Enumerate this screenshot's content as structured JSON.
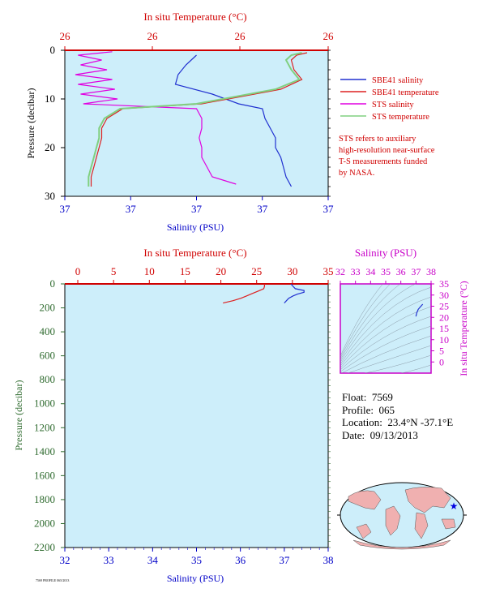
{
  "colors": {
    "plot_bg": "#cdeefa",
    "temperature": "#dd2020",
    "salinity": "#2030d0",
    "sts_salinity": "#e000e0",
    "sts_temperature": "#80d080",
    "top_axis": "#d00000",
    "bottom_axis": "#0000c8",
    "pressure_axis": "#2f6b2f",
    "ts_axis": "#c800c8"
  },
  "chart_data": [
    {
      "type": "line",
      "top_axis_title": "In situ Temperature (°C)",
      "top_ticks": [
        "26",
        "26",
        "26",
        "26"
      ],
      "ylabel": "Pressure (decibar)",
      "y_ticks": [
        "0",
        "10",
        "20",
        "30"
      ],
      "ylim": [
        0,
        30
      ],
      "xlabel": "Salinity (PSU)",
      "bottom_ticks": [
        "37",
        "37",
        "37",
        "37",
        "37"
      ],
      "legend": [
        {
          "label": "SBE41 salinity",
          "color": "#2030d0"
        },
        {
          "label": "SBE41 temperature",
          "color": "#dd2020"
        },
        {
          "label": "STS salinity",
          "color": "#e000e0"
        },
        {
          "label": "STS temperature",
          "color": "#80d080"
        }
      ],
      "note": [
        "STS refers to auxiliary",
        "high-resolution near-surface",
        "T-S measurements funded",
        "by NASA."
      ],
      "series": [
        {
          "name": "SBE41 salinity",
          "pressure": [
            1,
            3,
            5,
            7,
            9,
            11,
            12,
            14,
            16,
            18,
            20,
            22,
            24,
            26,
            28
          ],
          "position": [
            0.5,
            0.46,
            0.43,
            0.42,
            0.56,
            0.66,
            0.75,
            0.76,
            0.78,
            0.8,
            0.8,
            0.82,
            0.83,
            0.84,
            0.86
          ]
        },
        {
          "name": "SBE41 temperature",
          "pressure": [
            0.5,
            1,
            2,
            4,
            6,
            8,
            9,
            10,
            11,
            12,
            14,
            16,
            18,
            20,
            22,
            24,
            26,
            28
          ],
          "position": [
            0.92,
            0.88,
            0.86,
            0.87,
            0.9,
            0.82,
            0.72,
            0.62,
            0.52,
            0.22,
            0.16,
            0.14,
            0.14,
            0.13,
            0.12,
            0.11,
            0.1,
            0.1
          ]
        },
        {
          "name": "STS salinity",
          "pressure": [
            0.3,
            1,
            2,
            3,
            4,
            5,
            6,
            7,
            8,
            9,
            10,
            11,
            12,
            14,
            16,
            18,
            20,
            22,
            24,
            26,
            27.5
          ],
          "position": [
            0.18,
            0.05,
            0.14,
            0.06,
            0.16,
            0.04,
            0.18,
            0.05,
            0.19,
            0.06,
            0.2,
            0.07,
            0.5,
            0.52,
            0.52,
            0.51,
            0.52,
            0.52,
            0.54,
            0.56,
            0.65
          ]
        },
        {
          "name": "STS temperature",
          "pressure": [
            0.5,
            1,
            2,
            4,
            6,
            8,
            9,
            10,
            11,
            12,
            14,
            16,
            18,
            20,
            22,
            24,
            26,
            28
          ],
          "position": [
            0.9,
            0.86,
            0.84,
            0.86,
            0.89,
            0.8,
            0.7,
            0.6,
            0.5,
            0.21,
            0.15,
            0.13,
            0.13,
            0.12,
            0.11,
            0.1,
            0.09,
            0.09
          ]
        }
      ]
    },
    {
      "type": "line",
      "top_axis_title": "In situ Temperature (°C)",
      "top_ticks": [
        "0",
        "5",
        "10",
        "15",
        "20",
        "25",
        "30",
        "35"
      ],
      "xlim_top": [
        0,
        35
      ],
      "ylabel": "Pressure (decibar)",
      "y_ticks": [
        "0",
        "200",
        "400",
        "600",
        "800",
        "1000",
        "1200",
        "1400",
        "1600",
        "1800",
        "2000",
        "2200"
      ],
      "ylim": [
        0,
        2200
      ],
      "xlabel": "Salinity (PSU)",
      "bottom_ticks": [
        "32",
        "33",
        "34",
        "35",
        "36",
        "37",
        "38"
      ],
      "xlim_bottom": [
        32,
        38
      ],
      "series": [
        {
          "name": "temperature",
          "pressure": [
            0,
            20,
            40,
            60,
            80,
            100,
            120,
            140,
            160
          ],
          "value": [
            26.1,
            26.1,
            26.0,
            25.2,
            24.4,
            23.6,
            22.8,
            21.7,
            20.3
          ]
        },
        {
          "name": "salinity",
          "pressure": [
            0,
            20,
            40,
            55,
            70,
            85,
            100,
            120,
            140,
            160
          ],
          "value": [
            37.15,
            37.2,
            37.25,
            37.45,
            37.45,
            37.3,
            37.2,
            37.1,
            37.05,
            37.0
          ]
        }
      ]
    },
    {
      "type": "scatter",
      "top_axis_title": "Salinity (PSU)",
      "top_ticks": [
        "32",
        "33",
        "34",
        "35",
        "36",
        "37",
        "38"
      ],
      "xlim": [
        32,
        38
      ],
      "right_axis_title": "In situ Temperature (°C)",
      "right_ticks": [
        "35",
        "30",
        "25",
        "20",
        "15",
        "10",
        "5",
        "0"
      ],
      "ylim": [
        -5,
        35
      ],
      "series": [
        {
          "name": "profile",
          "salinity": [
            37.45,
            37.3,
            37.15,
            37.05,
            37.0
          ],
          "temperature": [
            25.9,
            24.8,
            23.6,
            22.0,
            20.4
          ]
        }
      ]
    }
  ],
  "float_info": {
    "float_label": "Float:",
    "float_value": "7569",
    "profile_label": "Profile:",
    "profile_value": "065",
    "location_label": "Location:",
    "location_value": "23.4°N  -37.1°E",
    "date_label": "Date:",
    "date_value": "09/13/2013"
  },
  "footer_code": "7569 PROFILE 065/2013"
}
